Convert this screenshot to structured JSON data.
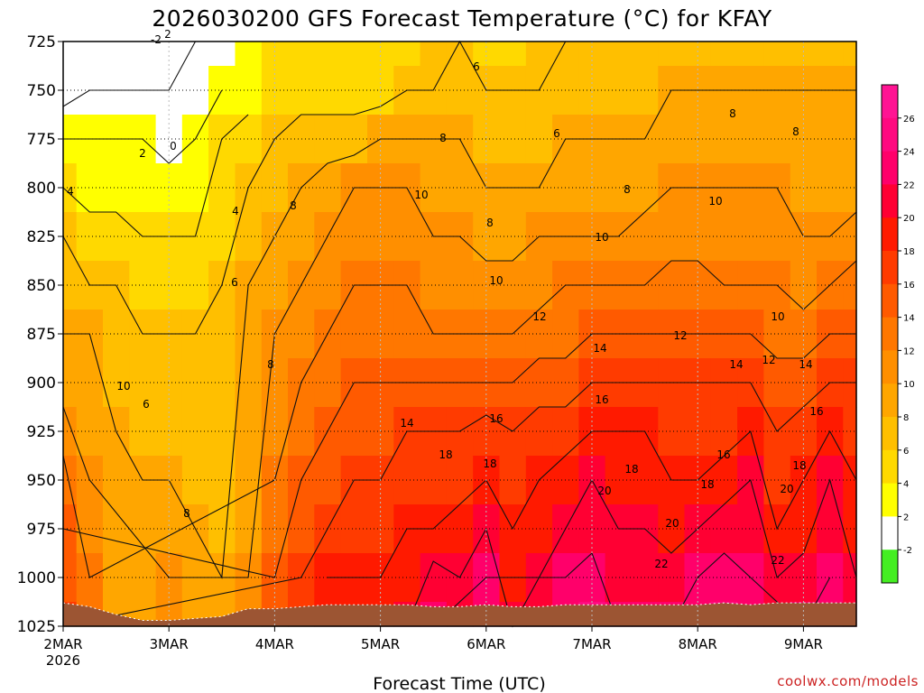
{
  "chart_data": {
    "type": "heatmap",
    "title": "2026030200  GFS Forecast Temperature (°C) for KFAY",
    "xlabel": "Forecast Time (UTC)",
    "ylabel": "",
    "credit": "coolwx.com/models",
    "x_ticks": [
      "2MAR",
      "3MAR",
      "4MAR",
      "5MAR",
      "6MAR",
      "7MAR",
      "8MAR",
      "9MAR"
    ],
    "x_year": "2026",
    "xlim": [
      0,
      7.5
    ],
    "y_ticks": [
      725,
      750,
      775,
      800,
      825,
      850,
      875,
      900,
      925,
      950,
      975,
      1000,
      1025
    ],
    "ylim": [
      1025,
      725
    ],
    "grid": true,
    "surface_hpa": [
      1013,
      1015,
      1019,
      1022,
      1022,
      1021,
      1020,
      1016,
      1016,
      1015,
      1014,
      1014,
      1014,
      1014,
      1015,
      1015,
      1014,
      1015,
      1015,
      1014,
      1014,
      1014,
      1014,
      1014,
      1014,
      1013,
      1014,
      1013,
      1013,
      1013,
      1013
    ],
    "surface_times": [
      0,
      0.25,
      0.5,
      0.75,
      1,
      1.25,
      1.5,
      1.75,
      2,
      2.25,
      2.5,
      2.75,
      3,
      3.25,
      3.5,
      3.75,
      4,
      4.25,
      4.5,
      4.75,
      5,
      5.25,
      5.5,
      5.75,
      6,
      6.25,
      6.5,
      6.75,
      7,
      7.25,
      7.5
    ],
    "colorbar": {
      "ticks": [
        26,
        24,
        22,
        20,
        18,
        16,
        14,
        12,
        10,
        8,
        6,
        4,
        2,
        -2
      ],
      "bands": [
        {
          "min": 26,
          "max": 28,
          "color": "#ff1493"
        },
        {
          "min": 24,
          "max": 26,
          "color": "#ff0a80"
        },
        {
          "min": 22,
          "max": 24,
          "color": "#ff006a"
        },
        {
          "min": 20,
          "max": 22,
          "color": "#ff0033"
        },
        {
          "min": 18,
          "max": 20,
          "color": "#ff1a00"
        },
        {
          "min": 16,
          "max": 18,
          "color": "#ff3b00"
        },
        {
          "min": 14,
          "max": 16,
          "color": "#ff5a00"
        },
        {
          "min": 12,
          "max": 14,
          "color": "#ff7700"
        },
        {
          "min": 10,
          "max": 12,
          "color": "#ff8f00"
        },
        {
          "min": 8,
          "max": 10,
          "color": "#ffa600"
        },
        {
          "min": 6,
          "max": 8,
          "color": "#ffbf00"
        },
        {
          "min": 4,
          "max": 6,
          "color": "#ffd900"
        },
        {
          "min": 2,
          "max": 4,
          "color": "#ffff00"
        },
        {
          "min": -2,
          "max": 2,
          "color": "#ffffff"
        },
        {
          "min": -4,
          "max": -2,
          "color": "#44ee22"
        }
      ]
    },
    "temperature_hpa_c": {
      "pressures": [
        725,
        750,
        775,
        800,
        825,
        850,
        875,
        900,
        925,
        950,
        975,
        1000,
        1025
      ],
      "times": [
        0,
        0.25,
        0.5,
        0.75,
        1,
        1.25,
        1.5,
        1.75,
        2,
        2.25,
        2.5,
        2.75,
        3,
        3.25,
        3.5,
        3.75,
        4,
        4.25,
        4.5,
        4.75,
        5,
        5.25,
        5.5,
        5.75,
        6,
        6.25,
        6.5,
        6.75,
        7,
        7.25,
        7.5
      ],
      "values": [
        [
          -2,
          -1,
          -1,
          0,
          -2,
          0,
          1,
          3,
          5,
          5,
          5,
          5,
          5,
          5,
          6,
          6,
          5,
          5,
          6,
          6,
          6,
          6,
          6,
          7,
          6,
          7,
          7,
          7,
          7,
          7,
          7
        ],
        [
          -1,
          0,
          0,
          0,
          0,
          1,
          2,
          3,
          5,
          5,
          5,
          5,
          5,
          6,
          6,
          7,
          6,
          6,
          6,
          7,
          7,
          7,
          7,
          8,
          8,
          8,
          8,
          8,
          8,
          8,
          8
        ],
        [
          2,
          2,
          2,
          2,
          1,
          2,
          4,
          5,
          6,
          7,
          7,
          7,
          8,
          8,
          8,
          8,
          7,
          7,
          7,
          8,
          8,
          8,
          8,
          9,
          9,
          9,
          9,
          9,
          8,
          9,
          9
        ],
        [
          4,
          3,
          3,
          3,
          3,
          3,
          4,
          6,
          7,
          8,
          9,
          10,
          10,
          10,
          9,
          9,
          8,
          8,
          8,
          9,
          9,
          9,
          9,
          10,
          10,
          10,
          10,
          10,
          9,
          9,
          9
        ],
        [
          6,
          5,
          5,
          4,
          4,
          4,
          5,
          7,
          8,
          9,
          10,
          11,
          11,
          11,
          10,
          10,
          9,
          9,
          10,
          10,
          10,
          10,
          11,
          11,
          11,
          11,
          11,
          11,
          10,
          10,
          11
        ],
        [
          7,
          6,
          6,
          5,
          5,
          5,
          6,
          8,
          9,
          10,
          11,
          12,
          12,
          12,
          11,
          11,
          11,
          11,
          11,
          12,
          12,
          12,
          12,
          13,
          13,
          12,
          12,
          12,
          11,
          12,
          13
        ],
        [
          8,
          8,
          7,
          6,
          6,
          6,
          7,
          8,
          10,
          11,
          12,
          13,
          13,
          13,
          12,
          12,
          12,
          12,
          13,
          13,
          14,
          14,
          14,
          14,
          14,
          14,
          14,
          13,
          13,
          14,
          14
        ],
        [
          9,
          8,
          7,
          7,
          6,
          6,
          7,
          8,
          10,
          12,
          13,
          14,
          14,
          14,
          14,
          14,
          14,
          14,
          15,
          15,
          16,
          16,
          16,
          16,
          16,
          16,
          16,
          15,
          15,
          16,
          16
        ],
        [
          11,
          9,
          8,
          7,
          7,
          6,
          7,
          9,
          11,
          13,
          14,
          15,
          15,
          16,
          16,
          16,
          17,
          16,
          17,
          17,
          18,
          18,
          18,
          17,
          17,
          17,
          18,
          16,
          17,
          18,
          17
        ],
        [
          13,
          10,
          9,
          8,
          8,
          7,
          7,
          9,
          12,
          14,
          15,
          16,
          16,
          17,
          17,
          17,
          18,
          17,
          18,
          19,
          20,
          19,
          19,
          18,
          18,
          19,
          20,
          17,
          18,
          20,
          18
        ],
        [
          14,
          11,
          8,
          8,
          9,
          8,
          7,
          9,
          13,
          15,
          16,
          17,
          17,
          18,
          18,
          19,
          20,
          18,
          19,
          20,
          21,
          20,
          20,
          19,
          20,
          21,
          21,
          18,
          19,
          21,
          19
        ],
        [
          15,
          12,
          9,
          8,
          10,
          9,
          8,
          10,
          14,
          16,
          18,
          18,
          18,
          19,
          21,
          20,
          22,
          19,
          20,
          22,
          23,
          21,
          21,
          21,
          22,
          23,
          22,
          20,
          21,
          22,
          20
        ],
        [
          16,
          12,
          9,
          8,
          10,
          9,
          8,
          10,
          14,
          17,
          19,
          19,
          19,
          20,
          22,
          21,
          23,
          20,
          21,
          23,
          24,
          22,
          22,
          22,
          23,
          24,
          23,
          21,
          22,
          23,
          21
        ]
      ]
    },
    "contour_labels": [
      "-2",
      "0",
      "2",
      "2",
      "4",
      "4",
      "6",
      "6",
      "6",
      "6",
      "8",
      "8",
      "8",
      "8",
      "8",
      "8",
      "8",
      "8",
      "10",
      "10",
      "10",
      "10",
      "10",
      "10",
      "12",
      "12",
      "12",
      "14",
      "14",
      "14",
      "14",
      "16",
      "16",
      "16",
      "16",
      "18",
      "18",
      "18",
      "18",
      "18",
      "20",
      "20",
      "20",
      "22",
      "22"
    ]
  }
}
